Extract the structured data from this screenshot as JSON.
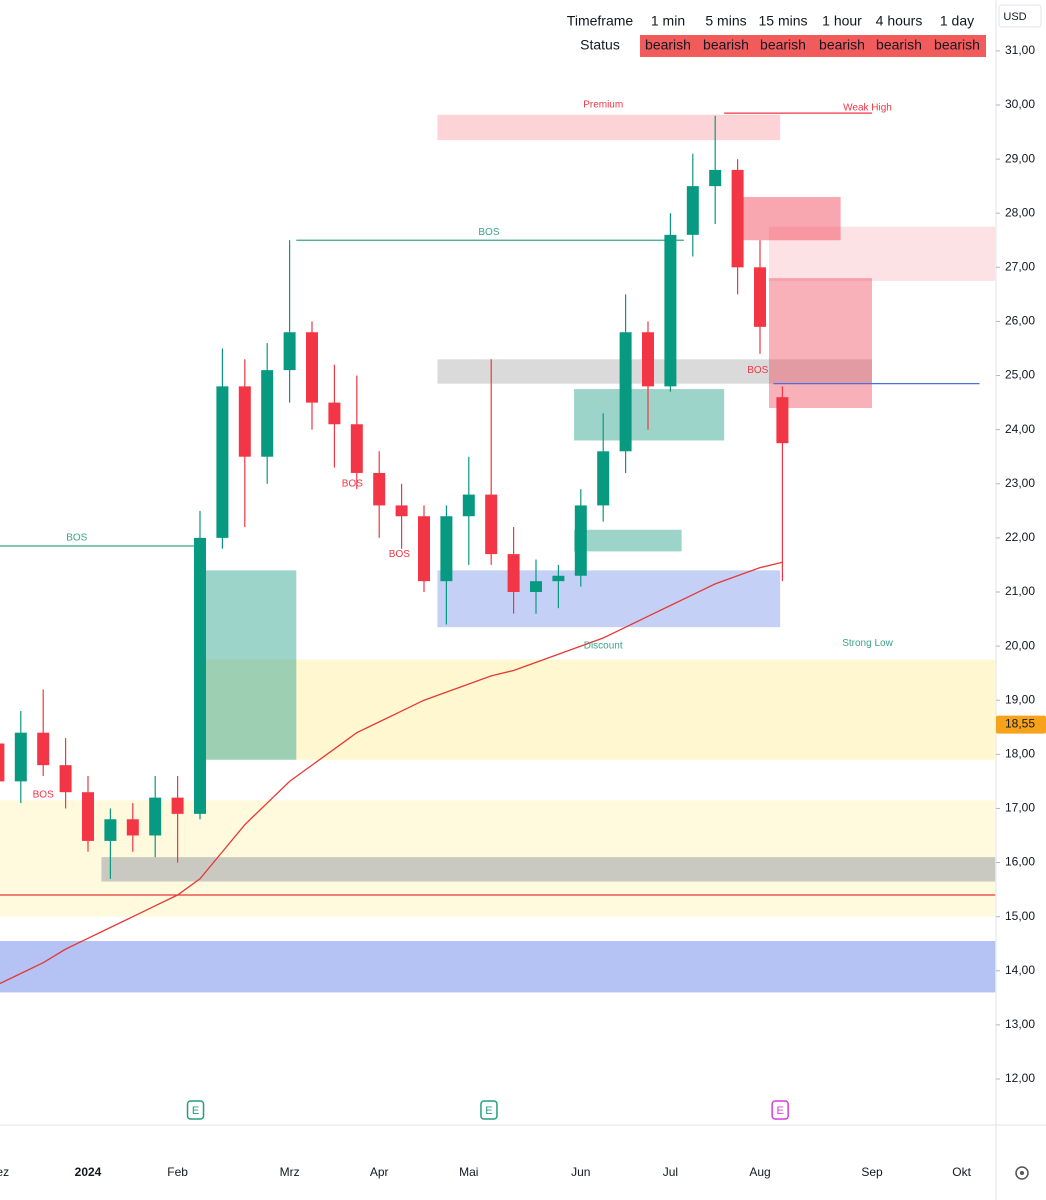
{
  "chart_data": {
    "type": "candlestick",
    "currency": "USD",
    "table": {
      "header": [
        "Timeframe",
        "1 min",
        "5 mins",
        "15 mins",
        "1 hour",
        "4 hours",
        "1 day"
      ],
      "status": [
        "Status",
        "bearish",
        "bearish",
        "bearish",
        "bearish",
        "bearish",
        "bearish"
      ],
      "status_color": "#f25b5b"
    },
    "categories": [
      "Dez",
      null,
      null,
      null,
      "2024",
      null,
      null,
      null,
      "Feb",
      null,
      null,
      null,
      null,
      "Mrz",
      null,
      null,
      null,
      "Apr",
      null,
      null,
      null,
      "Mai",
      null,
      null,
      null,
      null,
      "Jun",
      null,
      null,
      null,
      "Jul",
      null,
      null,
      null,
      "Aug",
      null,
      null,
      null,
      null,
      "Sep",
      null,
      null,
      null,
      "Okt",
      null
    ],
    "candles": {
      "open": [
        18.2,
        17.5,
        18.4,
        17.8,
        17.3,
        16.4,
        16.8,
        16.5,
        17.2,
        16.9,
        22.0,
        24.8,
        23.5,
        25.1,
        25.8,
        24.5,
        24.1,
        23.2,
        22.6,
        22.4,
        21.2,
        22.4,
        22.8,
        21.7,
        21.0,
        21.2,
        21.3,
        22.6,
        23.6,
        25.8,
        24.8,
        27.6,
        28.5,
        28.8,
        27.0,
        24.6,
        null,
        null,
        null,
        null,
        null,
        null,
        null,
        null,
        null
      ],
      "high": [
        18.6,
        18.8,
        19.2,
        18.3,
        17.6,
        17.0,
        17.1,
        17.6,
        17.6,
        22.5,
        25.5,
        25.3,
        25.6,
        27.5,
        26.0,
        25.2,
        25.0,
        23.6,
        23.0,
        22.6,
        22.6,
        23.5,
        25.3,
        22.2,
        21.6,
        21.5,
        22.9,
        24.3,
        26.5,
        26.0,
        28.0,
        29.1,
        29.8,
        29.0,
        27.5,
        24.8,
        null,
        null,
        null,
        null,
        null,
        null,
        null,
        null,
        null
      ],
      "low": [
        17.2,
        17.1,
        17.6,
        17.0,
        16.2,
        15.7,
        16.2,
        16.1,
        16.0,
        16.8,
        21.8,
        22.2,
        23.0,
        24.5,
        24.0,
        23.3,
        22.9,
        22.0,
        21.8,
        21.0,
        20.4,
        21.5,
        21.5,
        20.6,
        20.6,
        20.7,
        21.1,
        22.3,
        23.2,
        24.0,
        24.7,
        27.2,
        27.8,
        26.5,
        25.4,
        21.2,
        null,
        null,
        null,
        null,
        null,
        null,
        null,
        null,
        null
      ],
      "close": [
        17.5,
        18.4,
        17.8,
        17.3,
        16.4,
        16.8,
        16.5,
        17.2,
        16.9,
        22.0,
        24.8,
        23.5,
        25.1,
        25.8,
        24.5,
        24.1,
        23.2,
        22.6,
        22.4,
        21.2,
        22.4,
        22.8,
        21.7,
        21.0,
        21.2,
        21.3,
        22.6,
        23.6,
        25.8,
        24.8,
        27.6,
        28.5,
        28.8,
        27.0,
        25.9,
        23.75,
        null,
        null,
        null,
        null,
        null,
        null,
        null,
        null,
        null
      ],
      "up_color": "#089981",
      "down_color": "#f23645"
    },
    "ma200": [
      13.75,
      13.95,
      14.15,
      14.4,
      14.6,
      14.8,
      15.0,
      15.2,
      15.4,
      15.7,
      16.2,
      16.7,
      17.1,
      17.5,
      17.8,
      18.1,
      18.4,
      18.6,
      18.8,
      19.0,
      19.15,
      19.3,
      19.45,
      19.55,
      19.7,
      19.85,
      20.0,
      20.15,
      20.35,
      20.55,
      20.75,
      20.95,
      21.15,
      21.3,
      21.45,
      21.55,
      null,
      null,
      null,
      null,
      null,
      null,
      null,
      null,
      null
    ],
    "ma200_color": "#e53935",
    "zones": [
      {
        "from": 0,
        "to": 44.5,
        "low": 15.0,
        "high": 17.15,
        "color": "rgba(255,245,200,0.6)"
      },
      {
        "from": 8.8,
        "to": 44.5,
        "low": 17.9,
        "high": 19.75,
        "color": "rgba(255,240,170,0.55)"
      },
      {
        "from": 0,
        "to": 44.5,
        "low": 13.6,
        "high": 14.55,
        "color": "rgba(90,120,230,0.45)"
      },
      {
        "from": 4.6,
        "to": 44.5,
        "low": 15.65,
        "high": 16.1,
        "color": "rgba(120,130,150,0.4)"
      },
      {
        "from": 8.8,
        "to": 13.3,
        "low": 17.9,
        "high": 21.4,
        "color": "rgba(60,170,150,0.5)"
      },
      {
        "from": 19.6,
        "to": 34.9,
        "low": 29.35,
        "high": 29.82,
        "color": "rgba(245,130,140,0.35)"
      },
      {
        "from": 19.6,
        "to": 34.9,
        "low": 20.35,
        "high": 21.4,
        "color": "rgba(90,120,230,0.35)"
      },
      {
        "from": 19.6,
        "to": 39.0,
        "low": 24.85,
        "high": 25.3,
        "color": "rgba(150,150,150,0.35)"
      },
      {
        "from": 33.1,
        "to": 37.6,
        "low": 27.5,
        "high": 28.3,
        "color": "rgba(240,60,80,0.45)"
      },
      {
        "from": 34.4,
        "to": 39.0,
        "low": 24.4,
        "high": 26.8,
        "color": "rgba(240,60,80,0.4)"
      },
      {
        "from": 34.4,
        "to": 44.5,
        "low": 26.75,
        "high": 27.75,
        "color": "rgba(240,60,80,0.15)"
      },
      {
        "from": 25.7,
        "to": 32.4,
        "low": 23.8,
        "high": 24.75,
        "color": "rgba(60,170,150,0.5)"
      },
      {
        "from": 25.7,
        "to": 30.5,
        "low": 21.75,
        "high": 22.15,
        "color": "rgba(60,170,150,0.5)"
      }
    ],
    "levels": [
      {
        "value": 15.4,
        "from": 0,
        "to": 44.5,
        "color": "#e53935"
      },
      {
        "value": 27.5,
        "from": 13.3,
        "to": 30.6,
        "color": "#3aa38a"
      },
      {
        "value": 21.85,
        "from": 0,
        "to": 8.9,
        "color": "#3aa38a"
      },
      {
        "value": 29.85,
        "from": 32.4,
        "to": 39.0,
        "color": "#f23645"
      },
      {
        "value": 24.85,
        "from": 34.6,
        "to": 43.8,
        "color": "#4a6ee0"
      }
    ],
    "annotations": [
      {
        "text": "Premium",
        "x": 27,
        "y": 30.0,
        "color": "#f23645"
      },
      {
        "text": "Weak High",
        "x": 38.8,
        "y": 29.95,
        "color": "#f23645"
      },
      {
        "text": "BOS",
        "x": 21.9,
        "y": 27.65,
        "color": "#3aa38a"
      },
      {
        "text": "BOS",
        "x": 3.5,
        "y": 22.0,
        "color": "#3aa38a"
      },
      {
        "text": "BOS",
        "x": 15.8,
        "y": 23.0,
        "color": "#f23645"
      },
      {
        "text": "BOS",
        "x": 17.9,
        "y": 21.7,
        "color": "#f23645"
      },
      {
        "text": "BOS",
        "x": 2.0,
        "y": 17.25,
        "color": "#f23645"
      },
      {
        "text": "BOS",
        "x": 33.9,
        "y": 25.1,
        "color": "#f23645"
      },
      {
        "text": "Discount",
        "x": 27,
        "y": 20.0,
        "color": "#3aa38a"
      },
      {
        "text": "Strong Low",
        "x": 38.8,
        "y": 20.05,
        "color": "#3aa38a"
      }
    ],
    "events": [
      {
        "label": "E",
        "x": 8.8,
        "color": "#22a07a"
      },
      {
        "label": "E",
        "x": 21.9,
        "color": "#22a07a"
      },
      {
        "label": "E",
        "x": 34.9,
        "color": "#d63fd6"
      }
    ],
    "price_marker": {
      "value": 18.55,
      "label": "18,55",
      "color": "#f7a21b"
    },
    "ylim": [
      11.15,
      31.94
    ],
    "yticks": [
      {
        "value": 12,
        "label": "12,00"
      },
      {
        "value": 13,
        "label": "13,00"
      },
      {
        "value": 14,
        "label": "14,00"
      },
      {
        "value": 15,
        "label": "15,00"
      },
      {
        "value": 16,
        "label": "16,00"
      },
      {
        "value": 17,
        "label": "17,00"
      },
      {
        "value": 18,
        "label": "18,00"
      },
      {
        "value": 19,
        "label": "19,00"
      },
      {
        "value": 20,
        "label": "20,00"
      },
      {
        "value": 21,
        "label": "21,00"
      },
      {
        "value": 22,
        "label": "22,00"
      },
      {
        "value": 23,
        "label": "23,00"
      },
      {
        "value": 24,
        "label": "24,00"
      },
      {
        "value": 25,
        "label": "25,00"
      },
      {
        "value": 26,
        "label": "26,00"
      },
      {
        "value": 27,
        "label": "27,00"
      },
      {
        "value": 28,
        "label": "28,00"
      },
      {
        "value": 29,
        "label": "29,00"
      },
      {
        "value": 30,
        "label": "30,00"
      },
      {
        "value": 31,
        "label": "31,00"
      }
    ]
  }
}
